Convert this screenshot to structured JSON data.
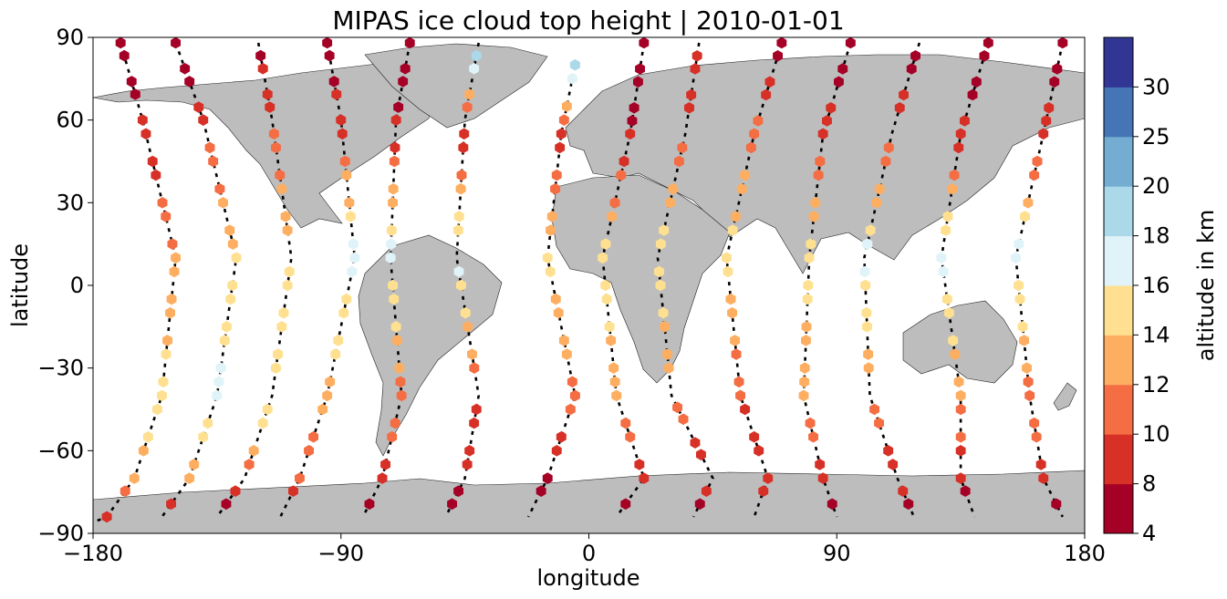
{
  "chart_data": {
    "type": "scatter",
    "title": "MIPAS ice cloud top height | 2010-01-01",
    "xlabel": "longitude",
    "ylabel": "latitude",
    "xlim": [
      -180,
      180
    ],
    "ylim": [
      -90,
      90
    ],
    "xticks": [
      "−180",
      "−90",
      "0",
      "90",
      "180"
    ],
    "xtick_values": [
      -180,
      -90,
      0,
      90,
      180
    ],
    "yticks": [
      "90",
      "60",
      "30",
      "0",
      "−30",
      "−60",
      "−90"
    ],
    "ytick_values": [
      90,
      60,
      30,
      0,
      -30,
      -60,
      -90
    ],
    "grid": false,
    "colorbar": {
      "label": "altitude in km",
      "bounds": [
        4,
        8,
        10,
        12,
        14,
        16,
        18,
        20,
        25,
        30
      ],
      "tick_labels": [
        "4",
        "8",
        "10",
        "12",
        "14",
        "16",
        "18",
        "20",
        "25",
        "30"
      ],
      "colors": [
        "#a50026",
        "#d73027",
        "#f46d43",
        "#fdae61",
        "#fee090",
        "#e0f3f8",
        "#abd9e9",
        "#74add1",
        "#4575b4",
        "#313695"
      ]
    },
    "colors": {
      "land": "#bdbdbd",
      "coast": "#222222",
      "track": "#000000"
    },
    "tracks": [
      {
        "lon": [
          -170,
          -162,
          -150,
          -155,
          -165,
          -175,
          -180
        ],
        "lat": [
          88,
          60,
          10,
          -40,
          -70,
          -84,
          -86
        ],
        "values": [
          6,
          8,
          12,
          15,
          13,
          9,
          6
        ]
      },
      {
        "lon": [
          -150,
          -140,
          -128,
          -135,
          -145,
          -155
        ],
        "lat": [
          88,
          60,
          10,
          -40,
          -70,
          -84
        ],
        "values": [
          6,
          9,
          14,
          17,
          12,
          7
        ]
      },
      {
        "lon": [
          -120,
          -115,
          -108,
          -115,
          -125,
          -135
        ],
        "lat": [
          88,
          60,
          10,
          -40,
          -70,
          -84
        ],
        "values": [
          7,
          10,
          14,
          16,
          11,
          6
        ]
      },
      {
        "lon": [
          -95,
          -90,
          -85,
          -95,
          -105,
          -112
        ],
        "lat": [
          88,
          60,
          10,
          -40,
          -70,
          -84
        ],
        "values": [
          6,
          9,
          17,
          13,
          10,
          7
        ]
      },
      {
        "lon": [
          -65,
          -70,
          -72,
          -68,
          -75,
          -82
        ],
        "lat": [
          88,
          60,
          10,
          -40,
          -70,
          -84
        ],
        "values": [
          7,
          8,
          17,
          11,
          9,
          6
        ]
      },
      {
        "lon": [
          -40,
          -45,
          -48,
          -40,
          -45,
          -52
        ],
        "lat": [
          88,
          60,
          10,
          -40,
          -70,
          -84
        ],
        "values": [
          21,
          8,
          17,
          10,
          8,
          6
        ]
      },
      {
        "lon": [
          -5,
          -10,
          -15,
          -5,
          -15,
          -22
        ],
        "lat": [
          80,
          55,
          10,
          -40,
          -70,
          -84
        ],
        "values": [
          19,
          9,
          15,
          11,
          7,
          6
        ]
      },
      {
        "lon": [
          20,
          15,
          5,
          10,
          20,
          10
        ],
        "lat": [
          88,
          55,
          10,
          -40,
          -70,
          -84
        ],
        "values": [
          7,
          8,
          15,
          13,
          9,
          6
        ]
      },
      {
        "lon": [
          40,
          35,
          25,
          30,
          45,
          38
        ],
        "lat": [
          88,
          55,
          10,
          -40,
          -70,
          -84
        ],
        "values": [
          8,
          10,
          16,
          11,
          9,
          6
        ]
      },
      {
        "lon": [
          70,
          60,
          50,
          55,
          65,
          60
        ],
        "lat": [
          88,
          55,
          10,
          -40,
          -70,
          -84
        ],
        "values": [
          7,
          11,
          15,
          10,
          9,
          6
        ]
      },
      {
        "lon": [
          95,
          85,
          80,
          78,
          85,
          90
        ],
        "lat": [
          88,
          55,
          10,
          -40,
          -70,
          -84
        ],
        "values": [
          6,
          9,
          15,
          12,
          8,
          6
        ]
      },
      {
        "lon": [
          120,
          110,
          100,
          102,
          112,
          118
        ],
        "lat": [
          88,
          55,
          10,
          -40,
          -70,
          -84
        ],
        "values": [
          7,
          10,
          17,
          11,
          9,
          6
        ]
      },
      {
        "lon": [
          145,
          135,
          128,
          135,
          135,
          140
        ],
        "lat": [
          88,
          55,
          10,
          -40,
          -70,
          -84
        ],
        "values": [
          6,
          9,
          17,
          12,
          8,
          6
        ]
      },
      {
        "lon": [
          172,
          165,
          155,
          160,
          165,
          172
        ],
        "lat": [
          88,
          55,
          10,
          -40,
          -70,
          -84
        ],
        "values": [
          7,
          9,
          17,
          11,
          9,
          6
        ]
      }
    ]
  }
}
